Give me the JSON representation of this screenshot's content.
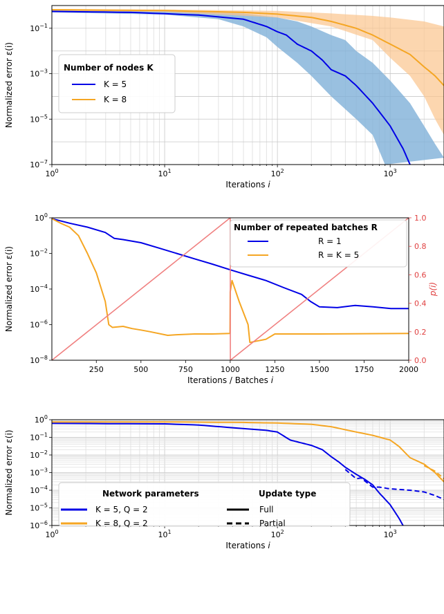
{
  "chart_data": [
    {
      "type": "line",
      "xscale": "log",
      "yscale": "log",
      "xlim": [
        1,
        3000
      ],
      "ylim": [
        1e-07,
        1
      ],
      "xlabel": "Iterations i",
      "ylabel": "Normalized error ε(i)",
      "x_tick_labels": [
        "10^0",
        "10^1",
        "10^2",
        "10^3"
      ],
      "y_tick_labels": [
        "10^-1",
        "10^-3",
        "10^-5",
        "10^-7"
      ],
      "grid": true,
      "legend": {
        "title": "Number of nodes K",
        "placement": "center-left"
      },
      "series": [
        {
          "name": "K = 5",
          "color": "#0000e6",
          "band_color": "#7fb0d8",
          "points": [
            [
              1,
              0.55
            ],
            [
              5,
              0.5
            ],
            [
              20,
              0.38
            ],
            [
              50,
              0.25
            ],
            [
              80,
              0.12
            ],
            [
              100,
              0.07
            ],
            [
              120,
              0.05
            ],
            [
              150,
              0.02
            ],
            [
              200,
              0.01
            ],
            [
              250,
              0.004
            ],
            [
              300,
              0.0015
            ],
            [
              400,
              0.0008
            ],
            [
              500,
              0.0003
            ],
            [
              700,
              5e-05
            ],
            [
              1000,
              5e-06
            ],
            [
              1300,
              5e-07
            ],
            [
              1500,
              1e-07
            ]
          ],
          "band_upper": [
            [
              1,
              0.62
            ],
            [
              10,
              0.58
            ],
            [
              50,
              0.45
            ],
            [
              100,
              0.3
            ],
            [
              150,
              0.2
            ],
            [
              200,
              0.12
            ],
            [
              300,
              0.05
            ],
            [
              400,
              0.03
            ],
            [
              500,
              0.01
            ],
            [
              700,
              0.003
            ],
            [
              1000,
              0.0005
            ],
            [
              1500,
              5e-05
            ],
            [
              2000,
              5e-06
            ],
            [
              2500,
              8e-07
            ],
            [
              3000,
              2e-07
            ]
          ],
          "band_lower": [
            [
              1,
              0.5
            ],
            [
              10,
              0.4
            ],
            [
              30,
              0.25
            ],
            [
              50,
              0.12
            ],
            [
              80,
              0.04
            ],
            [
              100,
              0.015
            ],
            [
              150,
              0.003
            ],
            [
              200,
              0.0008
            ],
            [
              300,
              0.0001
            ],
            [
              500,
              1e-05
            ],
            [
              700,
              2e-06
            ],
            [
              900,
              1e-07
            ]
          ]
        },
        {
          "name": "K = 8",
          "color": "#f5a623",
          "band_color": "#fbc48d",
          "points": [
            [
              1,
              0.65
            ],
            [
              10,
              0.6
            ],
            [
              50,
              0.5
            ],
            [
              100,
              0.42
            ],
            [
              200,
              0.3
            ],
            [
              300,
              0.2
            ],
            [
              500,
              0.1
            ],
            [
              700,
              0.05
            ],
            [
              1000,
              0.02
            ],
            [
              1500,
              0.007
            ],
            [
              2000,
              0.002
            ],
            [
              2500,
              0.0008
            ],
            [
              3000,
              0.0003
            ]
          ],
          "band_upper": [
            [
              1,
              0.7
            ],
            [
              10,
              0.67
            ],
            [
              100,
              0.58
            ],
            [
              300,
              0.45
            ],
            [
              700,
              0.35
            ],
            [
              1000,
              0.3
            ],
            [
              2000,
              0.2
            ],
            [
              3000,
              0.12
            ]
          ],
          "band_lower": [
            [
              1,
              0.6
            ],
            [
              10,
              0.52
            ],
            [
              100,
              0.3
            ],
            [
              300,
              0.12
            ],
            [
              700,
              0.03
            ],
            [
              1000,
              0.005
            ],
            [
              1500,
              0.0008
            ],
            [
              2000,
              0.0001
            ],
            [
              2500,
              1e-05
            ],
            [
              3000,
              2e-06
            ]
          ]
        }
      ]
    },
    {
      "type": "line",
      "xscale": "linear",
      "yscale": "log",
      "xlim": [
        1,
        2000
      ],
      "ylim": [
        1e-08,
        1
      ],
      "xlabel": "Iterations / Batches i",
      "ylabel": "Normalized error ε(i)",
      "y2label": "p(i)",
      "y2lim": [
        0,
        1
      ],
      "x_tick_labels": [
        "250",
        "500",
        "750",
        "1000",
        "1250",
        "1500",
        "1750",
        "2000"
      ],
      "y_tick_labels": [
        "10^0",
        "10^-2",
        "10^-4",
        "10^-6",
        "10^-8"
      ],
      "y2_tick_labels": [
        "0.0",
        "0.2",
        "0.4",
        "0.6",
        "0.8",
        "1.0"
      ],
      "legend": {
        "title": "Number of repeated batches R",
        "placement": "top-right"
      },
      "series": [
        {
          "name": "R = 1",
          "color": "#0000e6",
          "points": [
            [
              1,
              0.9
            ],
            [
              100,
              0.5
            ],
            [
              200,
              0.3
            ],
            [
              300,
              0.15
            ],
            [
              350,
              0.07
            ],
            [
              400,
              0.06
            ],
            [
              500,
              0.04
            ],
            [
              600,
              0.02
            ],
            [
              700,
              0.01
            ],
            [
              800,
              0.005
            ],
            [
              900,
              0.0025
            ],
            [
              1000,
              0.0012
            ],
            [
              1100,
              0.0006
            ],
            [
              1200,
              0.0003
            ],
            [
              1300,
              0.00012
            ],
            [
              1400,
              5e-05
            ],
            [
              1450,
              2e-05
            ],
            [
              1500,
              1e-05
            ],
            [
              1600,
              9e-06
            ],
            [
              1700,
              1.2e-05
            ],
            [
              1800,
              1e-05
            ],
            [
              1900,
              8e-06
            ],
            [
              2000,
              8e-06
            ]
          ]
        },
        {
          "name": "R = K = 5",
          "color": "#f5a623",
          "points": [
            [
              1,
              0.9
            ],
            [
              50,
              0.5
            ],
            [
              100,
              0.3
            ],
            [
              150,
              0.1
            ],
            [
              200,
              0.01
            ],
            [
              250,
              0.0008
            ],
            [
              300,
              2e-05
            ],
            [
              320,
              1e-06
            ],
            [
              340,
              7e-07
            ],
            [
              400,
              8e-07
            ],
            [
              450,
              6e-07
            ],
            [
              500,
              5e-07
            ],
            [
              550,
              4e-07
            ],
            [
              650,
              2.5e-07
            ],
            [
              700,
              2.7e-07
            ],
            [
              800,
              3e-07
            ],
            [
              900,
              3e-07
            ],
            [
              999,
              3.2e-07
            ],
            [
              1000,
              7e-05
            ],
            [
              1010,
              0.0003
            ],
            [
              1050,
              2e-05
            ],
            [
              1100,
              1e-06
            ],
            [
              1110,
              1e-07
            ],
            [
              1150,
              1.2e-07
            ],
            [
              1200,
              1.5e-07
            ],
            [
              1250,
              3e-07
            ],
            [
              1300,
              3e-07
            ],
            [
              1500,
              3e-07
            ],
            [
              2000,
              3.2e-07
            ]
          ]
        },
        {
          "name": "p(i)",
          "color": "#f08080",
          "axis": "right",
          "points": [
            [
              1,
              0
            ],
            [
              1000,
              1
            ],
            [
              1001,
              0
            ],
            [
              2000,
              1
            ]
          ]
        }
      ]
    },
    {
      "type": "line",
      "xscale": "log",
      "yscale": "log",
      "xlim": [
        1,
        3000
      ],
      "ylim": [
        1e-06,
        1
      ],
      "xlabel": "Iterations i",
      "ylabel": "Normalized error ε(i)",
      "x_tick_labels": [
        "10^0",
        "10^1",
        "10^2",
        "10^3"
      ],
      "y_tick_labels": [
        "10^0",
        "10^-1",
        "10^-2",
        "10^-3",
        "10^-4",
        "10^-5",
        "10^-6"
      ],
      "grid": true,
      "legend": {
        "title": "Network parameters",
        "style_title": "Update type",
        "styles": [
          "Full",
          "Partial"
        ],
        "placement": "lower-left"
      },
      "series": [
        {
          "name": "K = 5, Q = 2 — Full",
          "color": "#0000e6",
          "dash": false,
          "points": [
            [
              1,
              0.62
            ],
            [
              10,
              0.58
            ],
            [
              20,
              0.5
            ],
            [
              40,
              0.35
            ],
            [
              80,
              0.25
            ],
            [
              100,
              0.2
            ],
            [
              130,
              0.07
            ],
            [
              160,
              0.05
            ],
            [
              200,
              0.035
            ],
            [
              250,
              0.02
            ],
            [
              300,
              0.008
            ],
            [
              350,
              0.004
            ],
            [
              400,
              0.002
            ],
            [
              500,
              0.0008
            ],
            [
              600,
              0.0004
            ],
            [
              700,
              0.0002
            ],
            [
              800,
              7e-05
            ],
            [
              1000,
              1.5e-05
            ],
            [
              1200,
              2.5e-06
            ],
            [
              1300,
              1e-06
            ]
          ]
        },
        {
          "name": "K = 5, Q = 2 — Partial",
          "color": "#0000e6",
          "dash": true,
          "points": [
            [
              400,
              0.0015
            ],
            [
              500,
              0.00045
            ],
            [
              550,
              0.0005
            ],
            [
              700,
              0.00015
            ],
            [
              800,
              0.00015
            ],
            [
              1000,
              0.00012
            ],
            [
              1500,
              0.0001
            ],
            [
              2000,
              8e-05
            ],
            [
              2500,
              5e-05
            ],
            [
              3000,
              3e-05
            ]
          ]
        },
        {
          "name": "K = 8, Q = 2 — Full",
          "color": "#f5a623",
          "dash": false,
          "points": [
            [
              1,
              0.75
            ],
            [
              10,
              0.75
            ],
            [
              50,
              0.7
            ],
            [
              100,
              0.65
            ],
            [
              200,
              0.55
            ],
            [
              300,
              0.4
            ],
            [
              500,
              0.2
            ],
            [
              700,
              0.13
            ],
            [
              1000,
              0.07
            ],
            [
              1200,
              0.03
            ],
            [
              1500,
              0.007
            ],
            [
              2000,
              0.003
            ],
            [
              2500,
              0.001
            ],
            [
              3000,
              0.0003
            ]
          ]
        },
        {
          "name": "K = 8, Q = 2 — Partial",
          "color": "#f5a623",
          "dash": true,
          "points": [
            [
              2000,
              0.0025
            ],
            [
              2500,
              0.0012
            ],
            [
              3000,
              0.00045
            ]
          ]
        }
      ]
    }
  ]
}
